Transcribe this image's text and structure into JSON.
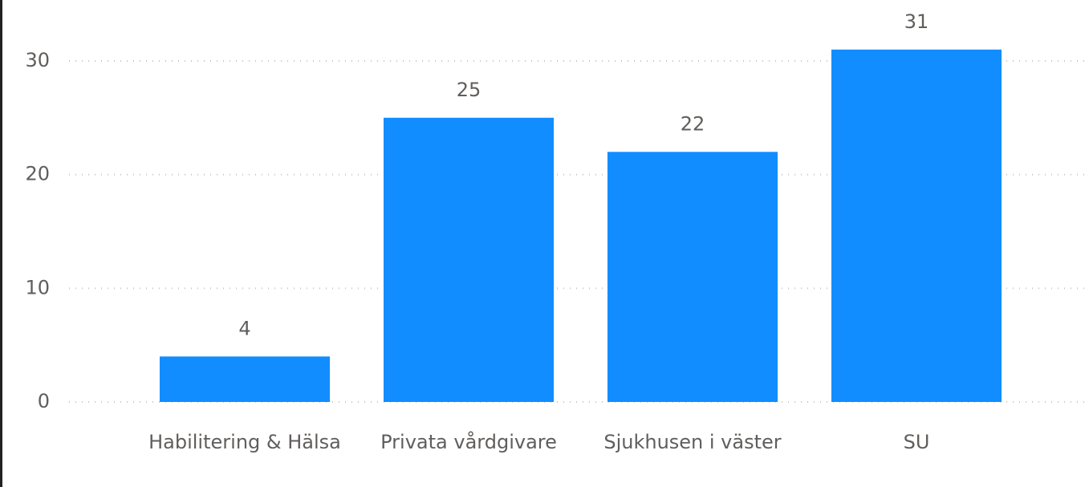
{
  "chart_data": {
    "type": "bar",
    "categories": [
      "Habilitering & Hälsa",
      "Privata vårdgivare",
      "Sjukhusen i väster",
      "SU"
    ],
    "values": [
      4,
      25,
      22,
      31
    ],
    "color": "#118dff",
    "ylim": [
      0,
      32
    ],
    "yticks": [
      0,
      10,
      20,
      30
    ],
    "grid": true
  }
}
